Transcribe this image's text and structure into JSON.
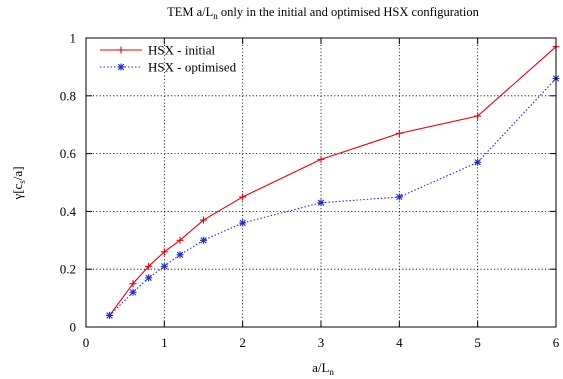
{
  "chart_data": {
    "type": "line",
    "title": "TEM a/L_n only in the initial and optimised HSX configuration",
    "xlabel": "a/L_n",
    "ylabel": "γ[c_s/a]",
    "xlim": [
      0,
      6
    ],
    "ylim": [
      0,
      1
    ],
    "xticks": [
      0,
      1,
      2,
      3,
      4,
      5,
      6
    ],
    "yticks": [
      0,
      0.2,
      0.4,
      0.6,
      0.8,
      1
    ],
    "ytick_labels": [
      "0",
      "0.2",
      "0.4",
      "0.6",
      "0.8",
      "1"
    ],
    "grid": true,
    "legend_position": "top-left",
    "series": [
      {
        "name": "HSX - initial",
        "color": "#e8000b",
        "line_style": "solid",
        "marker": "plus",
        "x": [
          0.3,
          0.6,
          0.8,
          1.0,
          1.2,
          1.5,
          2.0,
          3.0,
          4.0,
          5.0,
          6.0
        ],
        "y": [
          0.04,
          0.15,
          0.21,
          0.26,
          0.3,
          0.37,
          0.45,
          0.58,
          0.67,
          0.73,
          0.97
        ]
      },
      {
        "name": "HSX - optimised",
        "color": "#1a2bd6",
        "line_style": "dotted",
        "marker": "star",
        "x": [
          0.3,
          0.6,
          0.8,
          1.0,
          1.2,
          1.5,
          2.0,
          3.0,
          4.0,
          5.0,
          6.0
        ],
        "y": [
          0.04,
          0.12,
          0.17,
          0.21,
          0.25,
          0.3,
          0.36,
          0.43,
          0.45,
          0.57,
          0.86
        ]
      }
    ]
  }
}
